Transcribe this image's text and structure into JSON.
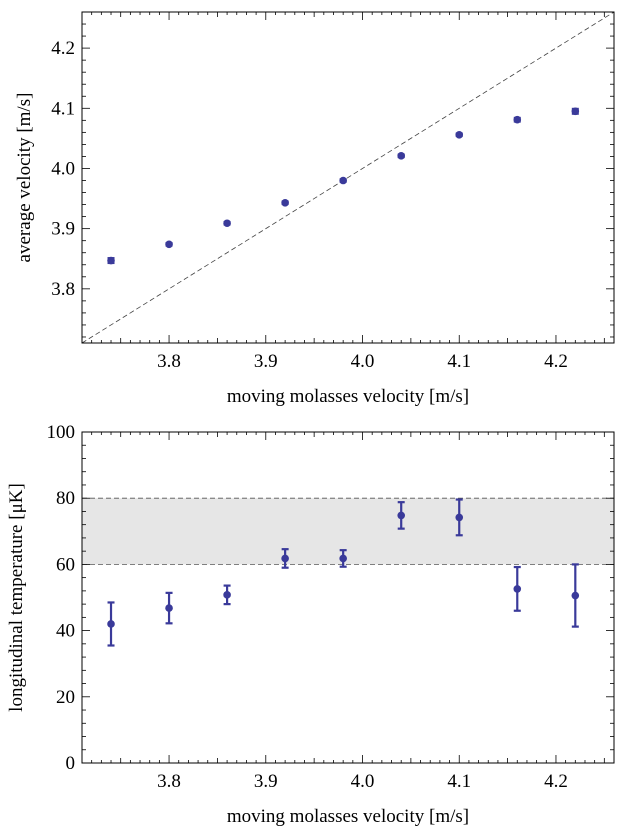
{
  "chart_data": [
    {
      "type": "scatter",
      "xlabel": "moving molasses velocity [m/s]",
      "ylabel": "average velocity [m/s]",
      "xlim": [
        3.71,
        4.26
      ],
      "ylim": [
        3.71,
        4.26
      ],
      "x_ticks": [
        3.8,
        3.9,
        4.0,
        4.1,
        4.2
      ],
      "x_tick_labels": [
        "3.8",
        "3.9",
        "4.0",
        "4.1",
        "4.2"
      ],
      "y_ticks": [
        3.8,
        3.9,
        4.0,
        4.1,
        4.2
      ],
      "y_tick_labels": [
        "3.8",
        "3.9",
        "4.0",
        "4.1",
        "4.2"
      ],
      "grid": false,
      "reference_line": {
        "style": "dashed",
        "slope": 1,
        "intercept": 0
      },
      "series": [
        {
          "color": "#3a3a9a",
          "x": [
            3.74,
            3.8,
            3.86,
            3.92,
            3.98,
            4.04,
            4.1,
            4.16,
            4.22
          ],
          "y": [
            3.847,
            3.874,
            3.909,
            3.943,
            3.98,
            4.021,
            4.056,
            4.081,
            4.095
          ],
          "err": [
            0.004,
            0.002,
            0.002,
            0.002,
            0.002,
            0.002,
            0.002,
            0.003,
            0.004
          ]
        }
      ]
    },
    {
      "type": "scatter",
      "xlabel": "moving molasses velocity [m/s]",
      "ylabel": "longitudinal temperature [μK]",
      "xlim": [
        3.71,
        4.26
      ],
      "ylim": [
        0,
        100
      ],
      "x_ticks": [
        3.8,
        3.9,
        4.0,
        4.1,
        4.2
      ],
      "x_tick_labels": [
        "3.8",
        "3.9",
        "4.0",
        "4.1",
        "4.2"
      ],
      "y_ticks": [
        0,
        20,
        40,
        60,
        80,
        100
      ],
      "y_tick_labels": [
        "0",
        "20",
        "40",
        "60",
        "80",
        "100"
      ],
      "grid": false,
      "shaded_band": {
        "y_from": 60,
        "y_to": 80,
        "color": "#e6e6e6",
        "edge_style": "dashed"
      },
      "series": [
        {
          "color": "#3a3a9a",
          "x": [
            3.74,
            3.8,
            3.86,
            3.92,
            3.98,
            4.04,
            4.1,
            4.16,
            4.22
          ],
          "y": [
            42.0,
            46.8,
            50.8,
            61.8,
            61.8,
            74.8,
            74.2,
            52.6,
            50.6
          ],
          "err": [
            6.5,
            4.6,
            2.8,
            2.8,
            2.5,
            4.0,
            5.4,
            6.6,
            9.4
          ]
        }
      ]
    }
  ]
}
